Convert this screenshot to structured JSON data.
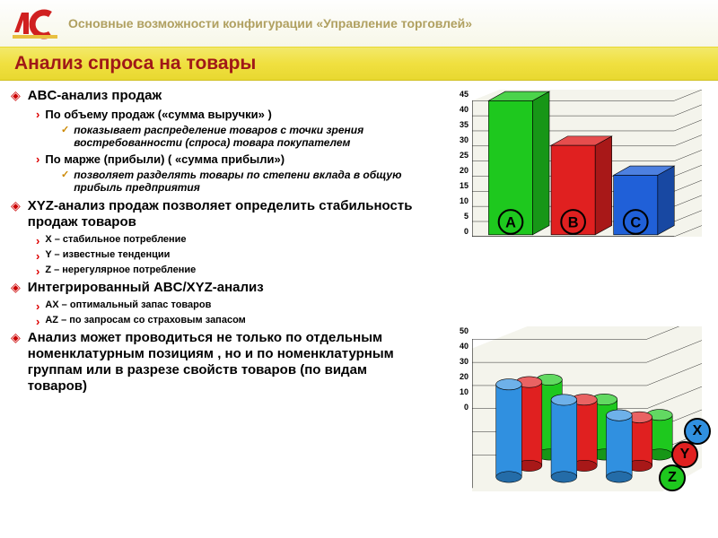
{
  "header": {
    "title": "Основные возможности конфигурации «Управление торговлей»",
    "logo_color": "#d02020"
  },
  "page_title": "Анализ спроса на товары",
  "titlebar_colors": {
    "bg_top": "#f3e96a",
    "bg_bottom": "#e8d830",
    "text": "#a01818"
  },
  "bullets": {
    "lv1_color": "#c00000",
    "lv2_color": "#d00000",
    "lv3_color": "#cc8800"
  },
  "items": [
    {
      "text": "ABC-анализ продаж",
      "children": [
        {
          "text": "По объему продаж  («сумма выручки» )",
          "children": [
            {
              "text": "показывает распределение товаров с точки зрения востребованности (спроса) товара покупателем"
            }
          ]
        },
        {
          "text": "По марже (прибыли) ( «сумма прибыли»)",
          "children": [
            {
              "text": " позволяет разделять товары по степени вклада в общую прибыль предприятия"
            }
          ]
        }
      ]
    },
    {
      "text": "XYZ-анализ продаж  позволяет определить стабильность продаж товаров",
      "children": [
        {
          "small": true,
          "text": "X – стабильное потребление"
        },
        {
          "small": true,
          "text": "Y – известные тенденции"
        },
        {
          "small": true,
          "text": "Z – нерегулярное потребление"
        }
      ]
    },
    {
      "text": "Интегрированный ABC/XYZ-анализ",
      "children": [
        {
          "small": true,
          "text": "AX – оптимальный запас товаров"
        },
        {
          "small": true,
          "text": "AZ – по запросам со страховым запасом"
        }
      ]
    },
    {
      "text": "Анализ может проводиться не только по отдельным номенклатурным позициям , но и по номенклатурным группам или в разрезе свойств товаров  (по видам товаров)"
    }
  ],
  "chartA": {
    "type": "3d-bar",
    "ylim": [
      0,
      45
    ],
    "ytick_step": 5,
    "categories": [
      "A",
      "B",
      "C"
    ],
    "values": [
      45,
      30,
      20
    ],
    "bar_colors": [
      "#1ec81e",
      "#e02020",
      "#2060d8"
    ],
    "badge_bg": [
      "#1ec81e",
      "#e02020",
      "#2060d8"
    ],
    "grid_color": "#000000",
    "plot_bg": "#f4f4ec"
  },
  "chartB": {
    "type": "3d-cylinder-grouped",
    "ylim": [
      0,
      50
    ],
    "ytick_step": 10,
    "rows": [
      "X",
      "Y",
      "Z"
    ],
    "row_colors": [
      "#3090e0",
      "#e02020",
      "#1ec81e"
    ],
    "badge_bg": [
      "#3090e0",
      "#e02020",
      "#1ec81e"
    ],
    "values": [
      [
        42,
        35,
        28
      ],
      [
        38,
        30,
        22
      ],
      [
        34,
        25,
        18
      ]
    ],
    "grid_color": "#000000",
    "plot_bg": "#f4f4ec"
  }
}
